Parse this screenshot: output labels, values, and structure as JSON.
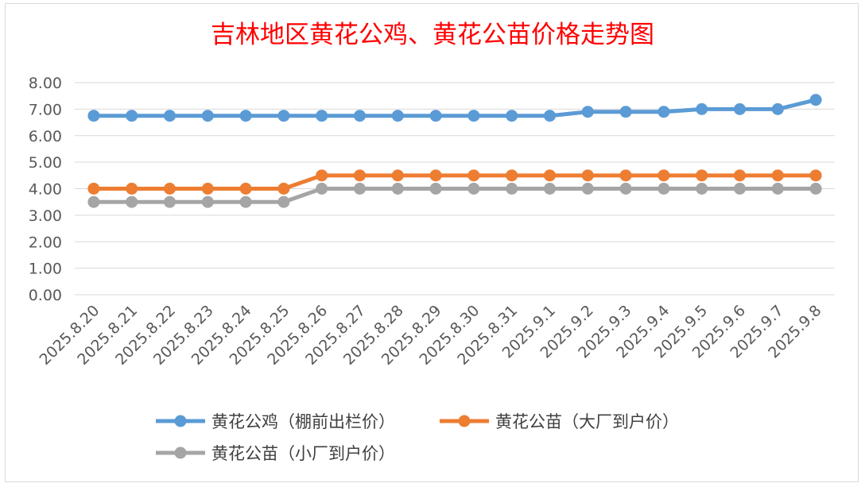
{
  "chart_data": {
    "type": "line",
    "title": "吉林地区黄花公鸡、黄花公苗价格走势图",
    "xlabel": "",
    "ylabel": "",
    "ylim": [
      0,
      8
    ],
    "y_ticks": [
      "0.00",
      "1.00",
      "2.00",
      "3.00",
      "4.00",
      "5.00",
      "6.00",
      "7.00",
      "8.00"
    ],
    "grid": "horizontal",
    "legend_position": "bottom",
    "categories": [
      "2025.8.20",
      "2025.8.21",
      "2025.8.22",
      "2025.8.23",
      "2025.8.24",
      "2025.8.25",
      "2025.8.26",
      "2025.8.27",
      "2025.8.28",
      "2025.8.29",
      "2025.8.30",
      "2025.8.31",
      "2025.9.1",
      "2025.9.2",
      "2025.9.3",
      "2025.9.4",
      "2025.9.5",
      "2025.9.6",
      "2025.9.7",
      "2025.9.8"
    ],
    "series": [
      {
        "name": "黄花公鸡（棚前出栏价）",
        "color": "#5b9bd5",
        "values": [
          6.75,
          6.75,
          6.75,
          6.75,
          6.75,
          6.75,
          6.75,
          6.75,
          6.75,
          6.75,
          6.75,
          6.75,
          6.75,
          6.9,
          6.9,
          6.9,
          7.0,
          7.0,
          7.0,
          7.35
        ]
      },
      {
        "name": "黄花公苗（大厂到户价）",
        "color": "#ed7d31",
        "values": [
          4.0,
          4.0,
          4.0,
          4.0,
          4.0,
          4.0,
          4.5,
          4.5,
          4.5,
          4.5,
          4.5,
          4.5,
          4.5,
          4.5,
          4.5,
          4.5,
          4.5,
          4.5,
          4.5,
          4.5
        ]
      },
      {
        "name": "黄花公苗（小厂到户价）",
        "color": "#a5a5a5",
        "values": [
          3.5,
          3.5,
          3.5,
          3.5,
          3.5,
          3.5,
          4.0,
          4.0,
          4.0,
          4.0,
          4.0,
          4.0,
          4.0,
          4.0,
          4.0,
          4.0,
          4.0,
          4.0,
          4.0,
          4.0
        ]
      }
    ]
  }
}
